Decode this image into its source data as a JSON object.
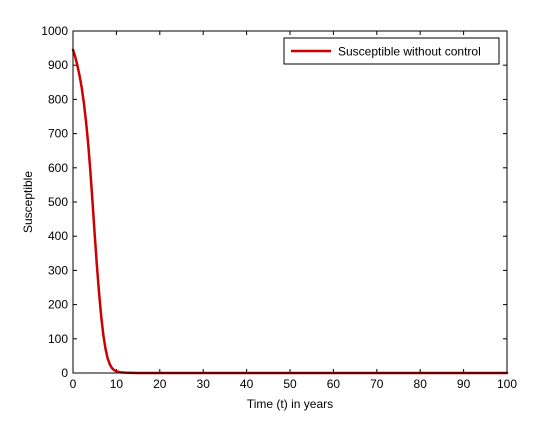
{
  "chart_data": {
    "type": "line",
    "title": "",
    "xlabel": "Time (t) in years",
    "ylabel": "Susceptible",
    "xlim": [
      0,
      100
    ],
    "ylim": [
      0,
      1000
    ],
    "xticks": [
      "0",
      "10",
      "20",
      "30",
      "40",
      "50",
      "60",
      "70",
      "80",
      "90",
      "100"
    ],
    "yticks": [
      "0",
      "100",
      "200",
      "300",
      "400",
      "500",
      "600",
      "700",
      "800",
      "900",
      "1000"
    ],
    "grid": false,
    "legend_position": "top-right",
    "series": [
      {
        "name": "Susceptible without control",
        "color": "#cc0000",
        "x": [
          0,
          0.5,
          1,
          1.5,
          2,
          2.5,
          3,
          3.5,
          4,
          4.5,
          5,
          5.5,
          6,
          6.5,
          7,
          7.5,
          8,
          8.5,
          9,
          9.5,
          10,
          11,
          12,
          15,
          20,
          30,
          40,
          50,
          60,
          70,
          80,
          90,
          100
        ],
        "y": [
          945,
          925,
          900,
          870,
          835,
          790,
          735,
          670,
          590,
          500,
          405,
          315,
          235,
          165,
          110,
          70,
          42,
          25,
          14,
          8,
          5,
          2,
          1,
          0,
          0,
          0,
          0,
          0,
          0,
          0,
          0,
          0,
          0
        ]
      }
    ]
  }
}
